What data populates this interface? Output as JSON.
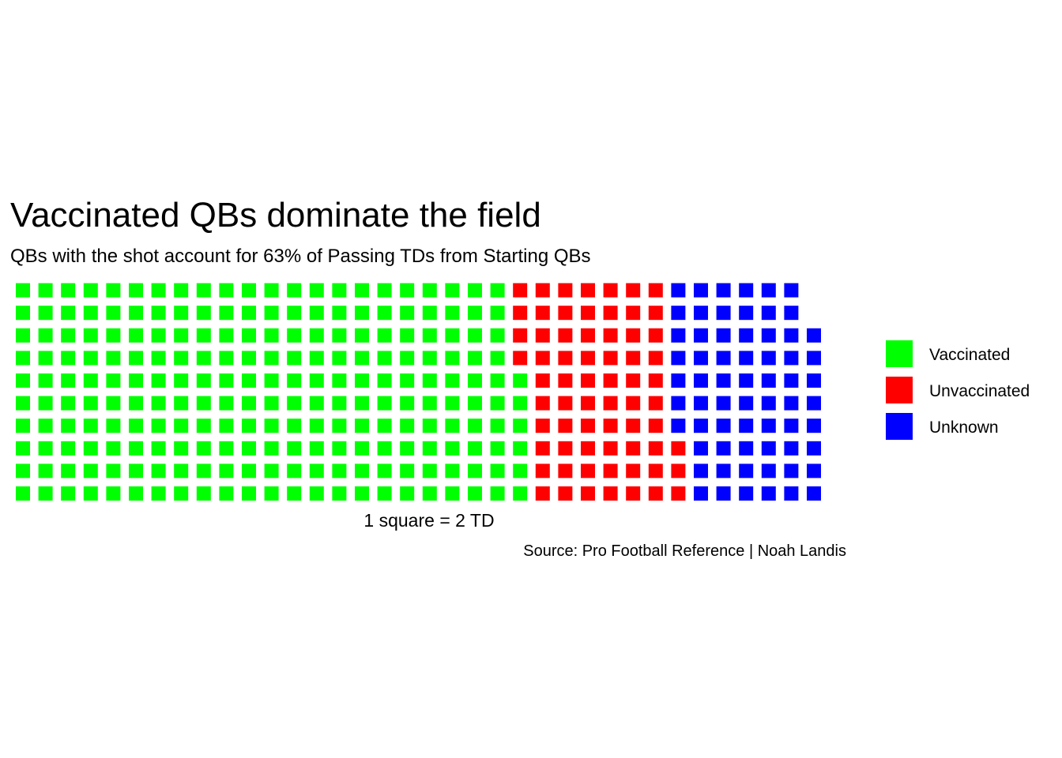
{
  "chart_data": {
    "type": "waffle",
    "title": "Vaccinated QBs dominate the field",
    "subtitle": "QBs with the shot account for 63% of Passing TDs from Starting QBs",
    "xlabel": "1 square = 2 TD",
    "caption": "Source: Pro Football Reference | Noah Landis",
    "unit": "1 square = 2 TD",
    "rows": 10,
    "fill_order": "column-major, bottom to top",
    "legend_position": "right",
    "series": [
      {
        "name": "Vaccinated",
        "squares": 226,
        "color": "#00FF00"
      },
      {
        "name": "Unvaccinated",
        "squares": 67,
        "color": "#FF0000"
      },
      {
        "name": "Unknown",
        "squares": 65,
        "color": "#0000FF"
      }
    ]
  }
}
